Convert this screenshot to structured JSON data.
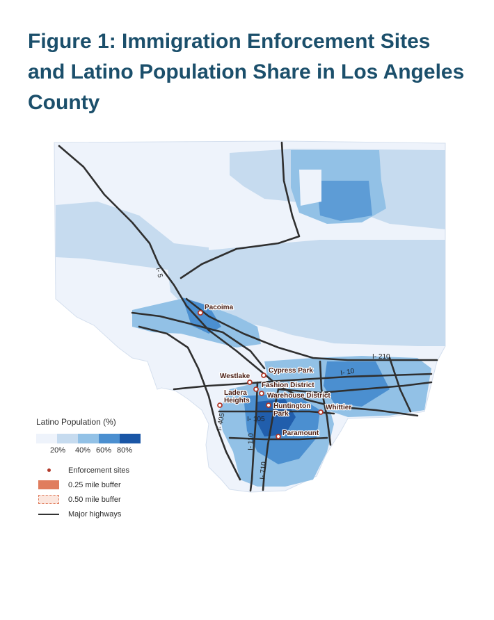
{
  "figure": {
    "title": "Figure 1: Immigration Enforcement Sites and Latino Population Share in Los Angeles County"
  },
  "legend": {
    "title": "Latino Population (%)",
    "ramp_colors": [
      "#eef3fb",
      "#c6dbef",
      "#92c1e6",
      "#4b8fd0",
      "#1a56a6"
    ],
    "ramp_labels": [
      "20%",
      "40%",
      "60%",
      "80%"
    ],
    "items": [
      {
        "symbol": "enforcement-site-dot",
        "label": "Enforcement sites"
      },
      {
        "symbol": "buffer-025",
        "label": "0.25 mile buffer"
      },
      {
        "symbol": "buffer-050",
        "label": "0.50 mile buffer"
      },
      {
        "symbol": "highway-line",
        "label": "Major highways"
      }
    ]
  },
  "map": {
    "colors": {
      "base": "#eef3fb",
      "light": "#c6dbef",
      "mid": "#92c1e6",
      "dark": "#4b8fd0",
      "darkest": "#1a56a6",
      "highway": "#2f2f2f",
      "site": "#b23a2b",
      "label_text": "#4a1e14"
    },
    "sites": [
      {
        "label": "Pacoima"
      },
      {
        "label": "Cypress Park"
      },
      {
        "label": "Westlake"
      },
      {
        "label": "Fashion District"
      },
      {
        "label": "Ladera Heights"
      },
      {
        "label": "Warehouse District"
      },
      {
        "label": "Huntington Park"
      },
      {
        "label": "Whittier"
      },
      {
        "label": "Paramount"
      }
    ],
    "highway_labels": [
      "I- 5",
      "I- 210",
      "I- 10",
      "I- 405",
      "I- 105",
      "I- 110",
      "I- 710"
    ]
  }
}
